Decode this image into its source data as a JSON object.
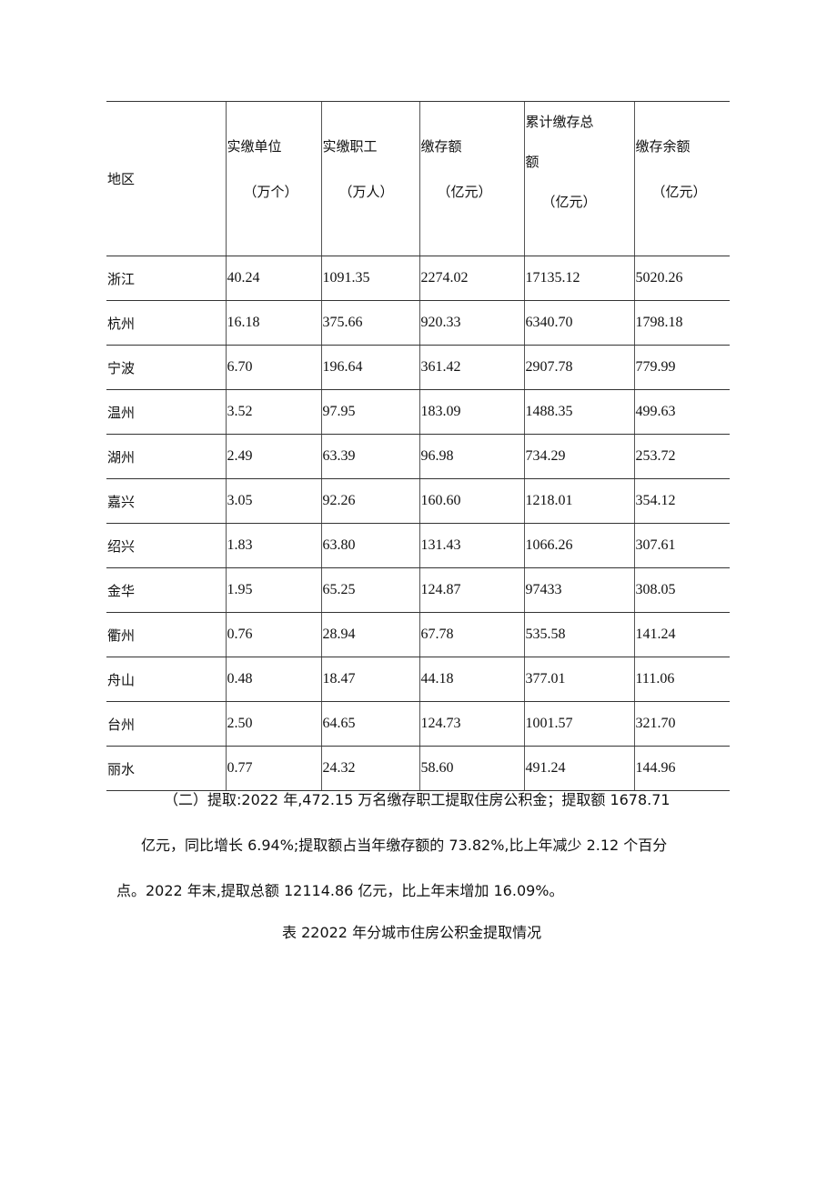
{
  "table": {
    "headers": [
      {
        "title": "地区",
        "unit": ""
      },
      {
        "title": "实缴单位",
        "unit": "（万个）"
      },
      {
        "title": "实缴职工",
        "unit": "（万人）"
      },
      {
        "title": "缴存额",
        "unit": "（亿元）"
      },
      {
        "title": "累计缴存总",
        "title2": "额",
        "unit": "（亿元）"
      },
      {
        "title": "缴存余额",
        "unit": "（亿元）"
      }
    ],
    "rows": [
      [
        "浙江",
        "40.24",
        "1091.35",
        "2274.02",
        "17135.12",
        "5020.26"
      ],
      [
        "杭州",
        "16.18",
        "375.66",
        "920.33",
        "6340.70",
        "1798.18"
      ],
      [
        "宁波",
        "6.70",
        "196.64",
        "361.42",
        "2907.78",
        "779.99"
      ],
      [
        "温州",
        "3.52",
        "97.95",
        "183.09",
        "1488.35",
        "499.63"
      ],
      [
        "湖州",
        "2.49",
        "63.39",
        "96.98",
        "734.29",
        "253.72"
      ],
      [
        "嘉兴",
        "3.05",
        "92.26",
        "160.60",
        "1218.01",
        "354.12"
      ],
      [
        "绍兴",
        "1.83",
        "63.80",
        "131.43",
        "1066.26",
        "307.61"
      ],
      [
        "金华",
        "1.95",
        "65.25",
        "124.87",
        "97433",
        "308.05"
      ],
      [
        "衢州",
        "0.76",
        "28.94",
        "67.78",
        "535.58",
        "141.24"
      ],
      [
        "舟山",
        "0.48",
        "18.47",
        "44.18",
        "377.01",
        "111.06"
      ],
      [
        "台州",
        "2.50",
        "64.65",
        "124.73",
        "1001.57",
        "321.70"
      ],
      [
        "丽水",
        "0.77",
        "24.32",
        "58.60",
        "491.24",
        "144.96"
      ]
    ]
  },
  "paragraph": {
    "line1": "（二）提取:2022 年,472.15 万名缴存职工提取住房公积金；提取额 1678.71",
    "line2": "亿元，同比增长 6.94%;提取额占当年缴存额的 73.82%,比上年减少 2.12 个百分",
    "line3": "点。2022 年末,提取总额 12114.86 亿元，比上年末增加 16.09%。"
  },
  "caption": "表 22022 年分城市住房公积金提取情况"
}
